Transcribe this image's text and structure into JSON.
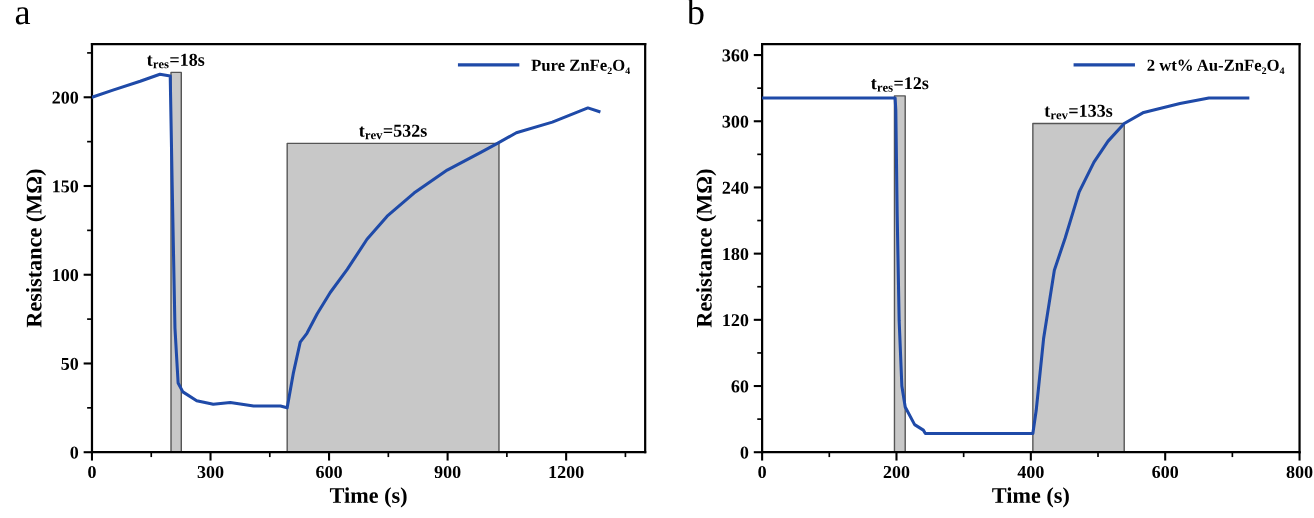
{
  "chart_data": [
    {
      "type": "line",
      "title": "a",
      "xlabel": "Time (s)",
      "ylabel": "Resistance (MΩ)",
      "xlim": [
        0,
        1400
      ],
      "xticks": [
        0,
        300,
        600,
        900,
        1200
      ],
      "ylim": [
        0,
        230
      ],
      "yticks": [
        0,
        50,
        100,
        150,
        200
      ],
      "grid": false,
      "legend": "top right",
      "series": [
        {
          "type": "area",
          "color": "#c8c8c8",
          "x": [
            200,
            226
          ],
          "values": [
            214,
            214
          ]
        },
        {
          "type": "area",
          "color": "#c8c8c8",
          "x": [
            494,
            1030
          ],
          "values": [
            174,
            174
          ]
        },
        {
          "name": "Pure ZnFe₂O₄",
          "color": "#1f4aa8",
          "x": [
            0,
            53,
            122,
            172,
            198,
            203,
            210,
            218,
            230,
            265,
            307,
            350,
            409,
            477,
            494,
            510,
            527,
            544,
            570,
            603,
            646,
            696,
            747,
            815,
            899,
            984,
            1026,
            1074,
            1165,
            1255,
            1283
          ],
          "values": [
            200,
            204,
            209,
            213,
            212,
            150,
            70,
            39,
            34,
            29,
            27,
            28,
            26,
            26,
            25,
            45,
            62,
            67,
            78,
            90,
            103,
            120,
            133,
            146,
            159,
            169,
            174,
            180,
            186,
            194,
            192
          ]
        }
      ],
      "annotations": [
        {
          "text": "t$_{res}$=18s",
          "x": 212,
          "y": 214
        },
        {
          "text": "t$_{rev}$=532s",
          "x": 762,
          "y": 174
        }
      ]
    },
    {
      "type": "line",
      "title": "b",
      "xlabel": "Time (s)",
      "ylabel": "Resistance (MΩ)",
      "xlim": [
        0,
        800
      ],
      "xticks": [
        0,
        200,
        400,
        600,
        800
      ],
      "ylim": [
        0,
        370
      ],
      "yticks": [
        0,
        60,
        120,
        180,
        240,
        300,
        360
      ],
      "grid": false,
      "legend": "top right",
      "series": [
        {
          "type": "area",
          "color": "#c8c8c8",
          "x": [
            197,
            213
          ],
          "values": [
            323,
            323
          ]
        },
        {
          "type": "area",
          "color": "#c8c8c8",
          "x": [
            403,
            539
          ],
          "values": [
            298,
            298
          ]
        },
        {
          "name": "2 wt% Au-ZnFe₂O₄",
          "color": "#1f4aa8",
          "x": [
            0,
            100,
            198,
            199,
            201,
            204,
            208,
            213,
            227,
            240,
            243,
            320,
            403,
            408,
            419,
            435,
            451,
            472,
            494,
            515,
            539,
            568,
            622,
            665,
            723
          ],
          "values": [
            321,
            321,
            321,
            310,
            217,
            119,
            60,
            41,
            25,
            20,
            17,
            17,
            17,
            38,
            103,
            165,
            194,
            236,
            263,
            282,
            298,
            308,
            316,
            321,
            321
          ]
        }
      ],
      "annotations": [
        {
          "text": "t$_{res}$=12s",
          "x": 205,
          "y": 323
        },
        {
          "text": "t$_{rev}$=133s",
          "x": 471,
          "y": 298
        }
      ]
    }
  ]
}
